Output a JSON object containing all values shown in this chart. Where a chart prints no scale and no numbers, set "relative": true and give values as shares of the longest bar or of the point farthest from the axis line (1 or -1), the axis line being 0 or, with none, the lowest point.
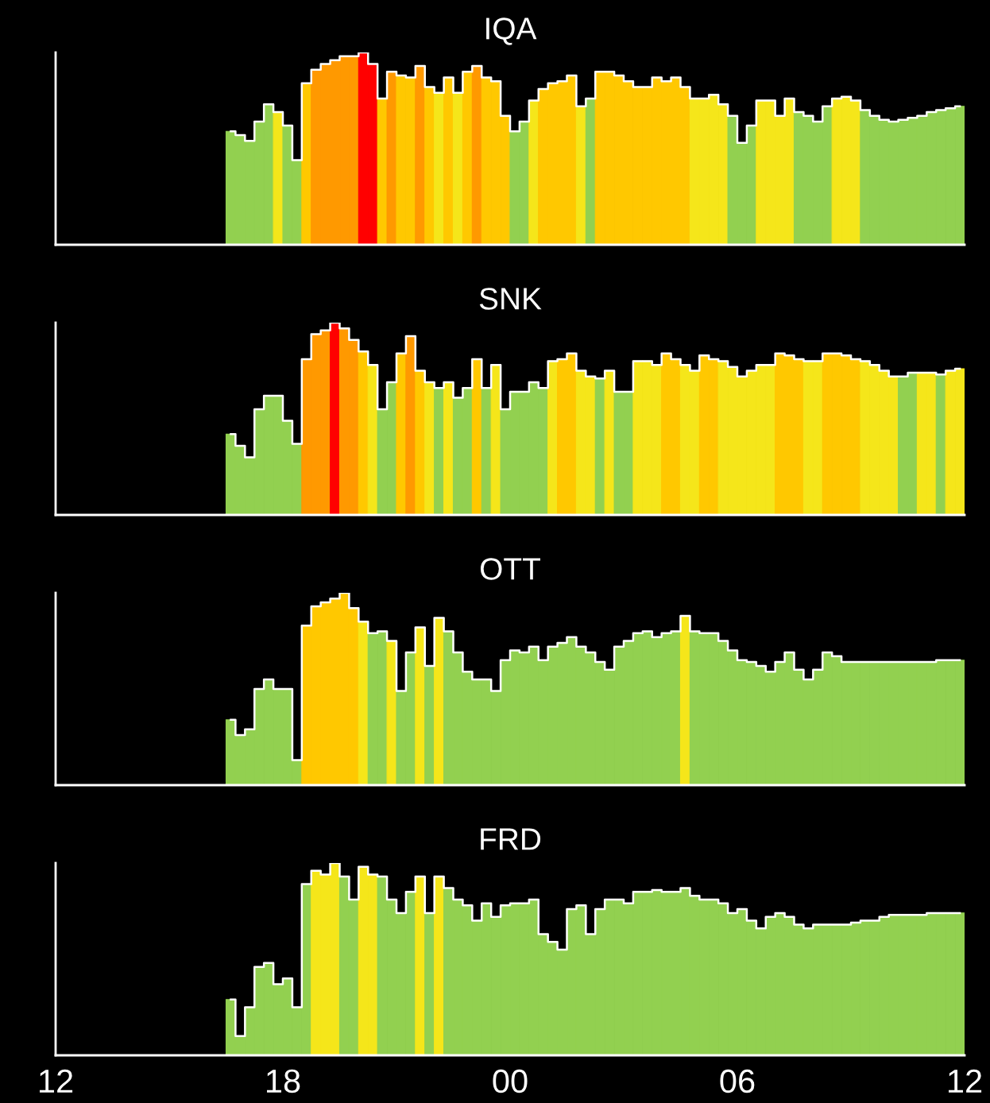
{
  "chart_data": [
    {
      "type": "bar",
      "title": "IQA",
      "relative": true,
      "xlim": [
        12,
        36
      ],
      "tick_labels": false,
      "x": [
        16.625,
        16.875,
        17.125,
        17.375,
        17.625,
        17.875,
        18.125,
        18.375,
        18.625,
        18.875,
        19.125,
        19.375,
        19.625,
        19.875,
        20.125,
        20.375,
        20.625,
        20.875,
        21.125,
        21.375,
        21.625,
        21.875,
        22.125,
        22.375,
        22.625,
        22.875,
        23.125,
        23.375,
        23.625,
        23.875,
        24.125,
        24.375,
        24.625,
        24.875,
        25.125,
        25.375,
        25.625,
        25.875,
        26.125,
        26.375,
        26.625,
        26.875,
        27.125,
        27.375,
        27.625,
        27.875,
        28.125,
        28.375,
        28.625,
        28.875,
        29.125,
        29.375,
        29.625,
        29.875,
        30.125,
        30.375,
        30.625,
        30.875,
        31.125,
        31.375,
        31.625,
        31.875,
        32.125,
        32.375,
        32.625,
        32.875,
        33.125,
        33.375,
        33.625,
        33.875,
        34.125,
        34.375,
        34.625,
        34.875,
        35.125,
        35.375,
        35.625,
        35.875
      ],
      "series": [
        {
          "type": "bar",
          "colors": [
            "#92d050",
            "#92d050",
            "#92d050",
            "#92d050",
            "#92d050",
            "#f5e61a",
            "#92d050",
            "#92d050",
            "#ffc800",
            "#ff9900",
            "#ff9900",
            "#ff9900",
            "#ff9900",
            "#ff9900",
            "#ff0000",
            "#ff0000",
            "#ffc800",
            "#ff9900",
            "#ffc800",
            "#ffc800",
            "#ff9900",
            "#ffc800",
            "#f5e61a",
            "#ffc800",
            "#f5e61a",
            "#ffc800",
            "#ff9900",
            "#ffc800",
            "#ffc800",
            "#ffc800",
            "#92d050",
            "#92d050",
            "#f5e61a",
            "#ffc800",
            "#ffc800",
            "#ffc800",
            "#ffc800",
            "#f5e61a",
            "#92d050",
            "#ffc800",
            "#ffc800",
            "#ffc800",
            "#ffc800",
            "#ffc800",
            "#ffc800",
            "#ffc800",
            "#ffc800",
            "#ffc800",
            "#ffc800",
            "#f5e61a",
            "#f5e61a",
            "#f5e61a",
            "#f5e61a",
            "#92d050",
            "#92d050",
            "#92d050",
            "#f5e61a",
            "#f5e61a",
            "#f5e61a",
            "#f5e61a",
            "#92d050",
            "#92d050",
            "#92d050",
            "#92d050",
            "#f5e61a",
            "#f5e61a",
            "#f5e61a",
            "#92d050",
            "#92d050",
            "#92d050",
            "#92d050",
            "#92d050",
            "#92d050",
            "#92d050",
            "#92d050",
            "#92d050",
            "#92d050",
            "#92d050"
          ],
          "values": [
            0.59,
            0.57,
            0.54,
            0.64,
            0.73,
            0.69,
            0.62,
            0.44,
            0.84,
            0.91,
            0.94,
            0.96,
            0.98,
            0.98,
            1.0,
            0.94,
            0.76,
            0.9,
            0.88,
            0.87,
            0.93,
            0.82,
            0.79,
            0.87,
            0.79,
            0.9,
            0.93,
            0.87,
            0.85,
            0.67,
            0.59,
            0.64,
            0.75,
            0.81,
            0.84,
            0.85,
            0.88,
            0.72,
            0.76,
            0.9,
            0.9,
            0.88,
            0.85,
            0.82,
            0.82,
            0.87,
            0.85,
            0.87,
            0.82,
            0.76,
            0.76,
            0.78,
            0.73,
            0.67,
            0.53,
            0.62,
            0.75,
            0.75,
            0.67,
            0.76,
            0.69,
            0.67,
            0.64,
            0.72,
            0.76,
            0.77,
            0.75,
            0.7,
            0.67,
            0.65,
            0.64,
            0.65,
            0.66,
            0.67,
            0.69,
            0.7,
            0.71,
            0.72
          ]
        },
        {
          "type": "step",
          "color": "#ffffff",
          "values": [
            0.59,
            0.57,
            0.54,
            0.64,
            0.73,
            0.69,
            0.62,
            0.44,
            0.84,
            0.91,
            0.94,
            0.96,
            0.98,
            0.98,
            1.0,
            0.94,
            0.76,
            0.9,
            0.88,
            0.87,
            0.93,
            0.82,
            0.79,
            0.87,
            0.79,
            0.9,
            0.93,
            0.87,
            0.85,
            0.67,
            0.59,
            0.64,
            0.75,
            0.81,
            0.84,
            0.85,
            0.88,
            0.72,
            0.76,
            0.9,
            0.9,
            0.88,
            0.85,
            0.82,
            0.82,
            0.87,
            0.85,
            0.87,
            0.82,
            0.76,
            0.76,
            0.78,
            0.73,
            0.67,
            0.53,
            0.62,
            0.75,
            0.75,
            0.67,
            0.76,
            0.69,
            0.67,
            0.64,
            0.72,
            0.76,
            0.77,
            0.75,
            0.7,
            0.67,
            0.65,
            0.64,
            0.65,
            0.66,
            0.67,
            0.69,
            0.7,
            0.71,
            0.72
          ]
        }
      ]
    },
    {
      "type": "bar",
      "title": "SNK",
      "relative": true,
      "xlim": [
        12,
        36
      ],
      "tick_labels": false,
      "x": [
        16.625,
        16.875,
        17.125,
        17.375,
        17.625,
        17.875,
        18.125,
        18.375,
        18.625,
        18.875,
        19.125,
        19.375,
        19.625,
        19.875,
        20.125,
        20.375,
        20.625,
        20.875,
        21.125,
        21.375,
        21.625,
        21.875,
        22.125,
        22.375,
        22.625,
        22.875,
        23.125,
        23.375,
        23.625,
        23.875,
        24.125,
        24.375,
        24.625,
        24.875,
        25.125,
        25.375,
        25.625,
        25.875,
        26.125,
        26.375,
        26.625,
        26.875,
        27.125,
        27.375,
        27.625,
        27.875,
        28.125,
        28.375,
        28.625,
        28.875,
        29.125,
        29.375,
        29.625,
        29.875,
        30.125,
        30.375,
        30.625,
        30.875,
        31.125,
        31.375,
        31.625,
        31.875,
        32.125,
        32.375,
        32.625,
        32.875,
        33.125,
        33.375,
        33.625,
        33.875,
        34.125,
        34.375,
        34.625,
        34.875,
        35.125,
        35.375,
        35.625,
        35.875
      ],
      "series": [
        {
          "type": "bar",
          "colors": [
            "#92d050",
            "#92d050",
            "#92d050",
            "#92d050",
            "#92d050",
            "#92d050",
            "#92d050",
            "#92d050",
            "#ff9900",
            "#ff9900",
            "#ff9900",
            "#ff0000",
            "#ff9900",
            "#ff9900",
            "#ffc800",
            "#f5e61a",
            "#92d050",
            "#92d050",
            "#ffc800",
            "#ff9900",
            "#ffc800",
            "#f5e61a",
            "#92d050",
            "#f5e61a",
            "#92d050",
            "#92d050",
            "#ffc800",
            "#92d050",
            "#f5e61a",
            "#92d050",
            "#92d050",
            "#92d050",
            "#92d050",
            "#92d050",
            "#f5e61a",
            "#ffc800",
            "#ffc800",
            "#f5e61a",
            "#f5e61a",
            "#92d050",
            "#f5e61a",
            "#92d050",
            "#92d050",
            "#f5e61a",
            "#f5e61a",
            "#f5e61a",
            "#ffc800",
            "#ffc800",
            "#f5e61a",
            "#f5e61a",
            "#ffc800",
            "#ffc800",
            "#f5e61a",
            "#f5e61a",
            "#f5e61a",
            "#f5e61a",
            "#f5e61a",
            "#f5e61a",
            "#ffc800",
            "#ffc800",
            "#ffc800",
            "#f5e61a",
            "#f5e61a",
            "#ffc800",
            "#ffc800",
            "#ffc800",
            "#ffc800",
            "#f5e61a",
            "#f5e61a",
            "#f5e61a",
            "#f5e61a",
            "#92d050",
            "#92d050",
            "#f5e61a",
            "#f5e61a",
            "#92d050",
            "#f5e61a",
            "#f5e61a"
          ],
          "values": [
            0.42,
            0.36,
            0.3,
            0.55,
            0.62,
            0.62,
            0.49,
            0.37,
            0.81,
            0.94,
            0.96,
            1.0,
            0.97,
            0.91,
            0.85,
            0.78,
            0.55,
            0.69,
            0.84,
            0.93,
            0.75,
            0.69,
            0.66,
            0.69,
            0.61,
            0.66,
            0.81,
            0.66,
            0.78,
            0.55,
            0.64,
            0.64,
            0.69,
            0.66,
            0.8,
            0.81,
            0.84,
            0.75,
            0.72,
            0.71,
            0.75,
            0.64,
            0.64,
            0.8,
            0.8,
            0.78,
            0.84,
            0.81,
            0.78,
            0.75,
            0.83,
            0.81,
            0.8,
            0.77,
            0.72,
            0.75,
            0.78,
            0.78,
            0.84,
            0.83,
            0.81,
            0.8,
            0.8,
            0.84,
            0.84,
            0.83,
            0.81,
            0.8,
            0.78,
            0.75,
            0.72,
            0.72,
            0.74,
            0.74,
            0.74,
            0.73,
            0.75,
            0.76
          ]
        },
        {
          "type": "step",
          "color": "#ffffff",
          "values": [
            0.42,
            0.36,
            0.3,
            0.55,
            0.62,
            0.62,
            0.49,
            0.37,
            0.81,
            0.94,
            0.96,
            1.0,
            0.97,
            0.91,
            0.85,
            0.78,
            0.55,
            0.69,
            0.84,
            0.93,
            0.75,
            0.69,
            0.66,
            0.69,
            0.61,
            0.66,
            0.81,
            0.66,
            0.78,
            0.55,
            0.64,
            0.64,
            0.69,
            0.66,
            0.8,
            0.81,
            0.84,
            0.75,
            0.72,
            0.71,
            0.75,
            0.64,
            0.64,
            0.8,
            0.8,
            0.78,
            0.84,
            0.81,
            0.78,
            0.75,
            0.83,
            0.81,
            0.8,
            0.77,
            0.72,
            0.75,
            0.78,
            0.78,
            0.84,
            0.83,
            0.81,
            0.8,
            0.8,
            0.84,
            0.84,
            0.83,
            0.81,
            0.8,
            0.78,
            0.75,
            0.72,
            0.72,
            0.74,
            0.74,
            0.74,
            0.73,
            0.75,
            0.76
          ]
        }
      ]
    },
    {
      "type": "bar",
      "title": "OTT",
      "relative": true,
      "xlim": [
        12,
        36
      ],
      "tick_labels": false,
      "x": [
        16.625,
        16.875,
        17.125,
        17.375,
        17.625,
        17.875,
        18.125,
        18.375,
        18.625,
        18.875,
        19.125,
        19.375,
        19.625,
        19.875,
        20.125,
        20.375,
        20.625,
        20.875,
        21.125,
        21.375,
        21.625,
        21.875,
        22.125,
        22.375,
        22.625,
        22.875,
        23.125,
        23.375,
        23.625,
        23.875,
        24.125,
        24.375,
        24.625,
        24.875,
        25.125,
        25.375,
        25.625,
        25.875,
        26.125,
        26.375,
        26.625,
        26.875,
        27.125,
        27.375,
        27.625,
        27.875,
        28.125,
        28.375,
        28.625,
        28.875,
        29.125,
        29.375,
        29.625,
        29.875,
        30.125,
        30.375,
        30.625,
        30.875,
        31.125,
        31.375,
        31.625,
        31.875,
        32.125,
        32.375,
        32.625,
        32.875,
        33.125,
        33.375,
        33.625,
        33.875,
        34.125,
        34.375,
        34.625,
        34.875,
        35.125,
        35.375,
        35.625,
        35.875
      ],
      "series": [
        {
          "type": "bar",
          "colors": [
            "#92d050",
            "#92d050",
            "#92d050",
            "#92d050",
            "#92d050",
            "#92d050",
            "#92d050",
            "#92d050",
            "#ffc800",
            "#ffc800",
            "#ffc800",
            "#ffc800",
            "#ffc800",
            "#ffc800",
            "#f5e61a",
            "#92d050",
            "#92d050",
            "#f5e61a",
            "#92d050",
            "#92d050",
            "#f5e61a",
            "#92d050",
            "#f5e61a",
            "#92d050",
            "#92d050",
            "#92d050",
            "#92d050",
            "#92d050",
            "#92d050",
            "#92d050",
            "#92d050",
            "#92d050",
            "#92d050",
            "#92d050",
            "#92d050",
            "#92d050",
            "#92d050",
            "#92d050",
            "#92d050",
            "#92d050",
            "#92d050",
            "#92d050",
            "#92d050",
            "#92d050",
            "#92d050",
            "#92d050",
            "#92d050",
            "#92d050",
            "#f5e61a",
            "#92d050",
            "#92d050",
            "#92d050",
            "#92d050",
            "#92d050",
            "#92d050",
            "#92d050",
            "#92d050",
            "#92d050",
            "#92d050",
            "#92d050",
            "#92d050",
            "#92d050",
            "#92d050",
            "#92d050",
            "#92d050",
            "#92d050",
            "#92d050",
            "#92d050",
            "#92d050",
            "#92d050",
            "#92d050",
            "#92d050",
            "#92d050",
            "#92d050",
            "#92d050",
            "#92d050",
            "#92d050",
            "#92d050"
          ],
          "values": [
            0.34,
            0.26,
            0.29,
            0.5,
            0.55,
            0.5,
            0.5,
            0.13,
            0.83,
            0.93,
            0.95,
            0.97,
            1.0,
            0.92,
            0.85,
            0.79,
            0.8,
            0.75,
            0.49,
            0.69,
            0.82,
            0.62,
            0.87,
            0.8,
            0.69,
            0.59,
            0.55,
            0.55,
            0.49,
            0.65,
            0.7,
            0.69,
            0.72,
            0.65,
            0.72,
            0.74,
            0.77,
            0.72,
            0.69,
            0.64,
            0.6,
            0.72,
            0.75,
            0.79,
            0.8,
            0.77,
            0.79,
            0.8,
            0.88,
            0.8,
            0.79,
            0.79,
            0.75,
            0.7,
            0.65,
            0.64,
            0.62,
            0.59,
            0.64,
            0.69,
            0.6,
            0.55,
            0.6,
            0.69,
            0.67,
            0.64,
            0.64,
            0.64,
            0.64,
            0.64,
            0.64,
            0.64,
            0.64,
            0.64,
            0.64,
            0.65,
            0.65,
            0.65
          ]
        },
        {
          "type": "step",
          "color": "#ffffff",
          "values": [
            0.34,
            0.26,
            0.29,
            0.5,
            0.55,
            0.5,
            0.5,
            0.13,
            0.83,
            0.93,
            0.95,
            0.97,
            1.0,
            0.92,
            0.85,
            0.79,
            0.8,
            0.75,
            0.49,
            0.69,
            0.82,
            0.62,
            0.87,
            0.8,
            0.69,
            0.59,
            0.55,
            0.55,
            0.49,
            0.65,
            0.7,
            0.69,
            0.72,
            0.65,
            0.72,
            0.74,
            0.77,
            0.72,
            0.69,
            0.64,
            0.6,
            0.72,
            0.75,
            0.79,
            0.8,
            0.77,
            0.79,
            0.8,
            0.88,
            0.8,
            0.79,
            0.79,
            0.75,
            0.7,
            0.65,
            0.64,
            0.62,
            0.59,
            0.64,
            0.69,
            0.6,
            0.55,
            0.6,
            0.69,
            0.67,
            0.64,
            0.64,
            0.64,
            0.64,
            0.64,
            0.64,
            0.64,
            0.64,
            0.64,
            0.64,
            0.65,
            0.65,
            0.65
          ]
        }
      ]
    },
    {
      "type": "bar",
      "title": "FRD",
      "relative": true,
      "xlim": [
        12,
        36
      ],
      "xticks": [
        {
          "value": 12,
          "label": "12"
        },
        {
          "value": 18,
          "label": "18"
        },
        {
          "value": 24,
          "label": "00"
        },
        {
          "value": 30,
          "label": "06"
        },
        {
          "value": 36,
          "label": "12"
        }
      ],
      "tick_labels": "x",
      "x": [
        16.625,
        16.875,
        17.125,
        17.375,
        17.625,
        17.875,
        18.125,
        18.375,
        18.625,
        18.875,
        19.125,
        19.375,
        19.625,
        19.875,
        20.125,
        20.375,
        20.625,
        20.875,
        21.125,
        21.375,
        21.625,
        21.875,
        22.125,
        22.375,
        22.625,
        22.875,
        23.125,
        23.375,
        23.625,
        23.875,
        24.125,
        24.375,
        24.625,
        24.875,
        25.125,
        25.375,
        25.625,
        25.875,
        26.125,
        26.375,
        26.625,
        26.875,
        27.125,
        27.375,
        27.625,
        27.875,
        28.125,
        28.375,
        28.625,
        28.875,
        29.125,
        29.375,
        29.625,
        29.875,
        30.125,
        30.375,
        30.625,
        30.875,
        31.125,
        31.375,
        31.625,
        31.875,
        32.125,
        32.375,
        32.625,
        32.875,
        33.125,
        33.375,
        33.625,
        33.875,
        34.125,
        34.375,
        34.625,
        34.875,
        35.125,
        35.375,
        35.625,
        35.875
      ],
      "series": [
        {
          "type": "bar",
          "colors": [
            "#92d050",
            "#92d050",
            "#92d050",
            "#92d050",
            "#92d050",
            "#92d050",
            "#92d050",
            "#92d050",
            "#92d050",
            "#f5e61a",
            "#f5e61a",
            "#f5e61a",
            "#92d050",
            "#92d050",
            "#f5e61a",
            "#f5e61a",
            "#92d050",
            "#92d050",
            "#92d050",
            "#92d050",
            "#f5e61a",
            "#92d050",
            "#f5e61a",
            "#92d050",
            "#92d050",
            "#92d050",
            "#92d050",
            "#92d050",
            "#92d050",
            "#92d050",
            "#92d050",
            "#92d050",
            "#92d050",
            "#92d050",
            "#92d050",
            "#92d050",
            "#92d050",
            "#92d050",
            "#92d050",
            "#92d050",
            "#92d050",
            "#92d050",
            "#92d050",
            "#92d050",
            "#92d050",
            "#92d050",
            "#92d050",
            "#92d050",
            "#92d050",
            "#92d050",
            "#92d050",
            "#92d050",
            "#92d050",
            "#92d050",
            "#92d050",
            "#92d050",
            "#92d050",
            "#92d050",
            "#92d050",
            "#92d050",
            "#92d050",
            "#92d050",
            "#92d050",
            "#92d050",
            "#92d050",
            "#92d050",
            "#92d050",
            "#92d050",
            "#92d050",
            "#92d050",
            "#92d050",
            "#92d050",
            "#92d050",
            "#92d050",
            "#92d050",
            "#92d050",
            "#92d050",
            "#92d050"
          ],
          "values": [
            0.29,
            0.1,
            0.25,
            0.46,
            0.48,
            0.37,
            0.4,
            0.25,
            0.89,
            0.96,
            0.94,
            1.0,
            0.93,
            0.81,
            0.98,
            0.94,
            0.93,
            0.81,
            0.74,
            0.85,
            0.93,
            0.74,
            0.93,
            0.87,
            0.81,
            0.78,
            0.7,
            0.79,
            0.72,
            0.78,
            0.79,
            0.79,
            0.81,
            0.63,
            0.59,
            0.55,
            0.76,
            0.78,
            0.63,
            0.76,
            0.81,
            0.81,
            0.79,
            0.85,
            0.85,
            0.86,
            0.85,
            0.85,
            0.87,
            0.83,
            0.81,
            0.81,
            0.79,
            0.74,
            0.76,
            0.7,
            0.66,
            0.72,
            0.74,
            0.72,
            0.68,
            0.66,
            0.68,
            0.68,
            0.68,
            0.68,
            0.69,
            0.7,
            0.7,
            0.72,
            0.73,
            0.73,
            0.73,
            0.73,
            0.74,
            0.74,
            0.74,
            0.74
          ]
        },
        {
          "type": "step",
          "color": "#ffffff",
          "values": [
            0.29,
            0.1,
            0.25,
            0.46,
            0.48,
            0.37,
            0.4,
            0.25,
            0.89,
            0.96,
            0.94,
            1.0,
            0.93,
            0.81,
            0.98,
            0.94,
            0.93,
            0.81,
            0.74,
            0.85,
            0.93,
            0.74,
            0.93,
            0.87,
            0.81,
            0.78,
            0.7,
            0.79,
            0.72,
            0.78,
            0.79,
            0.79,
            0.81,
            0.63,
            0.59,
            0.55,
            0.76,
            0.78,
            0.63,
            0.76,
            0.81,
            0.81,
            0.79,
            0.85,
            0.85,
            0.86,
            0.85,
            0.85,
            0.87,
            0.83,
            0.81,
            0.81,
            0.79,
            0.74,
            0.76,
            0.7,
            0.66,
            0.72,
            0.74,
            0.72,
            0.68,
            0.66,
            0.68,
            0.68,
            0.68,
            0.68,
            0.69,
            0.7,
            0.7,
            0.72,
            0.73,
            0.73,
            0.73,
            0.73,
            0.74,
            0.74,
            0.74,
            0.74
          ]
        }
      ]
    }
  ]
}
